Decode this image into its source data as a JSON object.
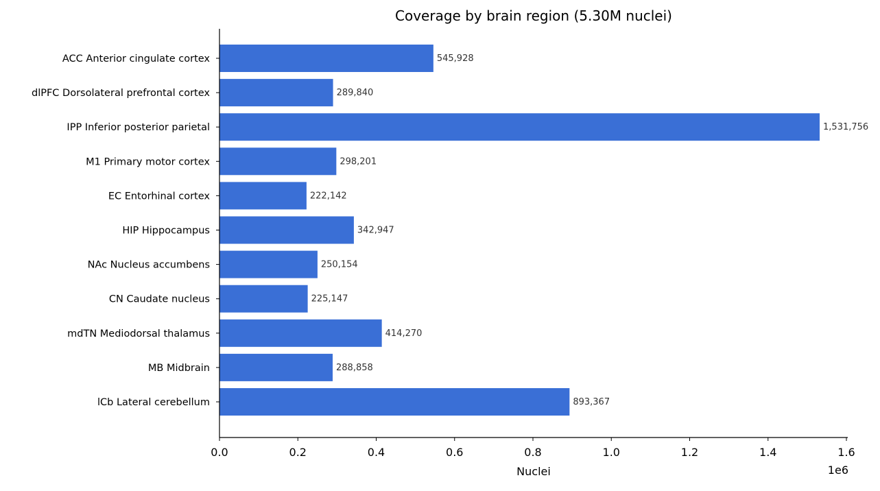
{
  "chart_data": {
    "type": "bar",
    "orientation": "horizontal",
    "title": "Coverage by brain region (5.30M nuclei)",
    "xlabel": "Nuclei",
    "ylabel": "",
    "x_scale_label": "1e6",
    "xlim": [
      0,
      1.6
    ],
    "x_ticks": [
      "0.0",
      "0.2",
      "0.4",
      "0.6",
      "0.8",
      "1.0",
      "1.2",
      "1.4",
      "1.6"
    ],
    "bar_color": "#3a6fd6",
    "grid": false,
    "categories": [
      "ACC  Anterior cingulate cortex",
      "dlPFC  Dorsolateral prefrontal cortex",
      "IPP  Inferior posterior parietal",
      "M1  Primary motor cortex",
      "EC  Entorhinal cortex",
      "HIP  Hippocampus",
      "NAc  Nucleus accumbens",
      "CN  Caudate nucleus",
      "mdTN  Mediodorsal thalamus",
      "MB  Midbrain",
      "lCb  Lateral cerebellum"
    ],
    "values": [
      545928,
      289840,
      1531756,
      298201,
      222142,
      342947,
      250154,
      225147,
      414270,
      288858,
      893367
    ],
    "value_labels": [
      "545,928",
      "289,840",
      "1,531,756",
      "298,201",
      "222,142",
      "342,947",
      "250,154",
      "225,147",
      "414,270",
      "288,858",
      "893,367"
    ]
  }
}
